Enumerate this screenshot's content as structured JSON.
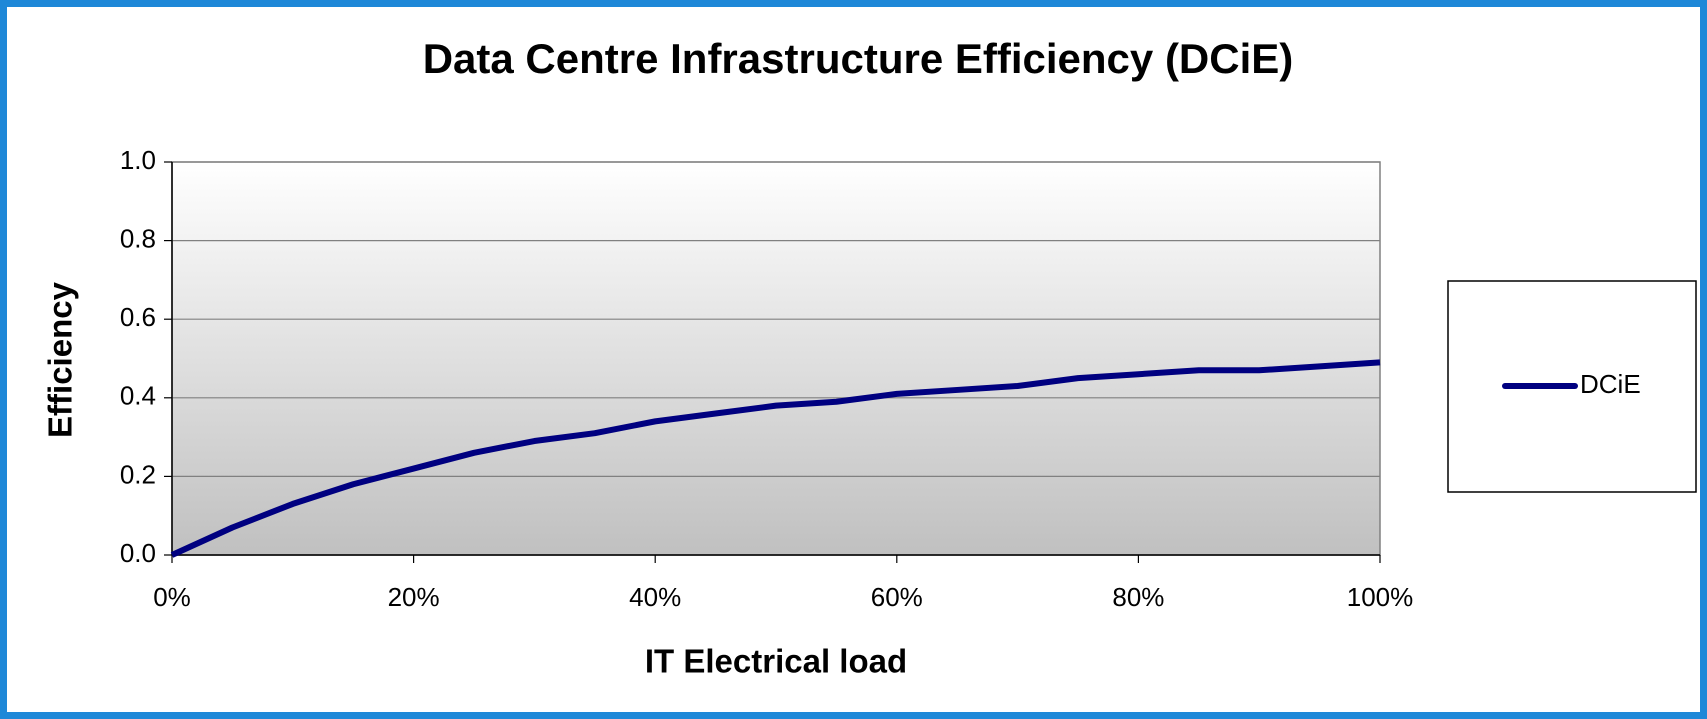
{
  "chart_data": {
    "type": "line",
    "title": "Data Centre Infrastructure Efficiency (DCiE)",
    "x_label": "IT Electrical load",
    "y_label": "Efficiency",
    "x": [
      0,
      5,
      10,
      15,
      20,
      25,
      30,
      35,
      40,
      45,
      50,
      55,
      60,
      65,
      70,
      75,
      80,
      85,
      90,
      95,
      100
    ],
    "series": [
      {
        "name": "DCiE",
        "color": "#000080",
        "values": [
          0,
          0.07,
          0.13,
          0.18,
          0.22,
          0.26,
          0.29,
          0.31,
          0.34,
          0.36,
          0.38,
          0.39,
          0.41,
          0.42,
          0.43,
          0.45,
          0.46,
          0.47,
          0.47,
          0.48,
          0.49
        ]
      }
    ],
    "xlim": [
      0,
      100
    ],
    "xticks": [
      {
        "value": 0,
        "label": "0%"
      },
      {
        "value": 20,
        "label": "20%"
      },
      {
        "value": 40,
        "label": "40%"
      },
      {
        "value": 60,
        "label": "60%"
      },
      {
        "value": 80,
        "label": "80%"
      },
      {
        "value": 100,
        "label": "100%"
      }
    ],
    "ylim": [
      0,
      1
    ],
    "yticks": [
      {
        "value": 0,
        "label": "0.0"
      },
      0.2,
      0.4,
      0.6,
      0.8,
      {
        "value": 1,
        "label": "1.0"
      }
    ],
    "grid": true,
    "legend": "right"
  }
}
